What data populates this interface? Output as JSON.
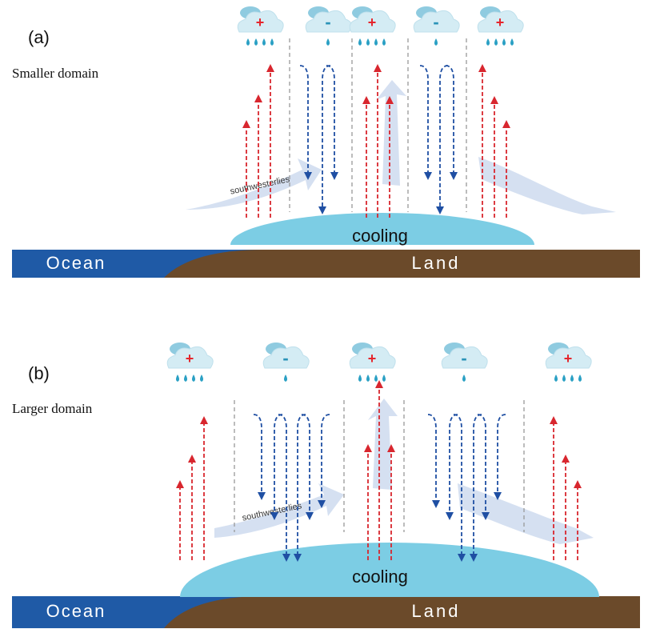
{
  "panels": [
    {
      "label": "(a)",
      "caption": "Smaller domain",
      "clouds": [
        "+",
        "-",
        "+",
        "-",
        "+"
      ],
      "wind_label": "southwesterlies",
      "cooling": "cooling",
      "ocean": "Ocean",
      "land": "Land"
    },
    {
      "label": "(b)",
      "caption": "Larger domain",
      "clouds": [
        "+",
        "-",
        "+",
        "-",
        "+"
      ],
      "wind_label": "southwesterlies",
      "cooling": "cooling",
      "ocean": "Ocean",
      "land": "Land"
    }
  ]
}
